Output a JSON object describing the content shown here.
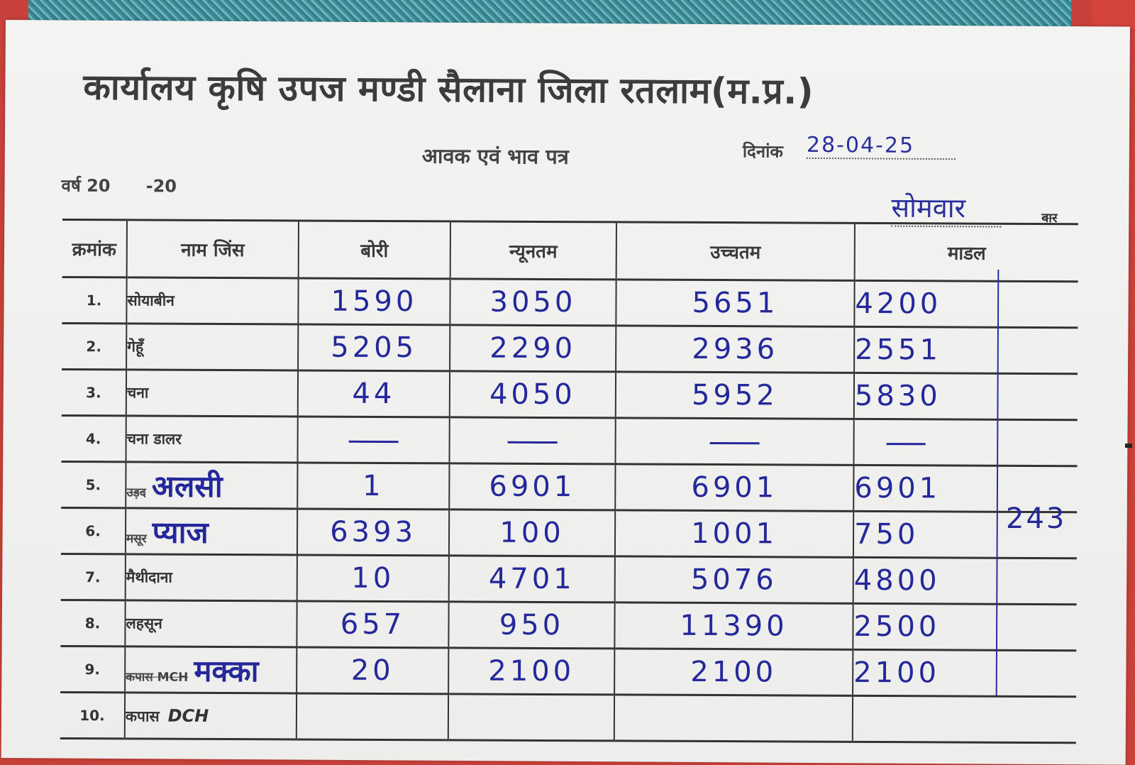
{
  "header": {
    "title": "कार्यालय कृषि उपज मण्डी सैलाना जिला रतलाम(म.प्र.)",
    "subtitle": "आवक एवं भाव पत्र",
    "date_label": "दिनांक",
    "date_value": "28-04-25",
    "year_label": "वर्ष 20      -20",
    "day_value": "सोमवार",
    "day_struck": "वार"
  },
  "table": {
    "columns": [
      "क्रमांक",
      "नाम जिंस",
      "बोरी",
      "न्यूनतम",
      "उच्चतम",
      "माडल"
    ],
    "rows": [
      {
        "sno": "1.",
        "name": "सोयाबीन",
        "bori": "1590",
        "min": "3050",
        "max": "5651",
        "model": "4200"
      },
      {
        "sno": "2.",
        "name": "गेहूँ",
        "bori": "5205",
        "min": "2290",
        "max": "2936",
        "model": "2551"
      },
      {
        "sno": "3.",
        "name": "चना",
        "bori": "44",
        "min": "4050",
        "max": "5952",
        "model": "5830"
      },
      {
        "sno": "4.",
        "name": "चना डालर",
        "bori": "",
        "min": "",
        "max": "",
        "model": ""
      },
      {
        "sno": "5.",
        "name_struck": "उड़द",
        "name_hand": "अलसी",
        "bori": "1",
        "min": "6901",
        "max": "6901",
        "model": "6901"
      },
      {
        "sno": "6.",
        "name_struck": "मसूर",
        "name_hand": "प्याज",
        "bori": "6393",
        "min": "100",
        "max": "1001",
        "model": "750",
        "extra": "243"
      },
      {
        "sno": "7.",
        "name": "मैथीदाना",
        "bori": "10",
        "min": "4701",
        "max": "5076",
        "model": "4800"
      },
      {
        "sno": "8.",
        "name": "लहसून",
        "bori": "657",
        "min": "950",
        "max": "11390",
        "model": "2500"
      },
      {
        "sno": "9.",
        "name_struck": "कपास MCH",
        "name_hand": "मक्का",
        "bori": "20",
        "min": "2100",
        "max": "2100",
        "model": "2100"
      },
      {
        "sno": "10.",
        "name": "कपास",
        "name_suffix": "DCH",
        "bori": "",
        "min": "",
        "max": "",
        "model": ""
      }
    ]
  },
  "colors": {
    "ink_blue": "#24289a",
    "print_gray": "#3c3c3c",
    "paper": "#f0f0ee"
  }
}
